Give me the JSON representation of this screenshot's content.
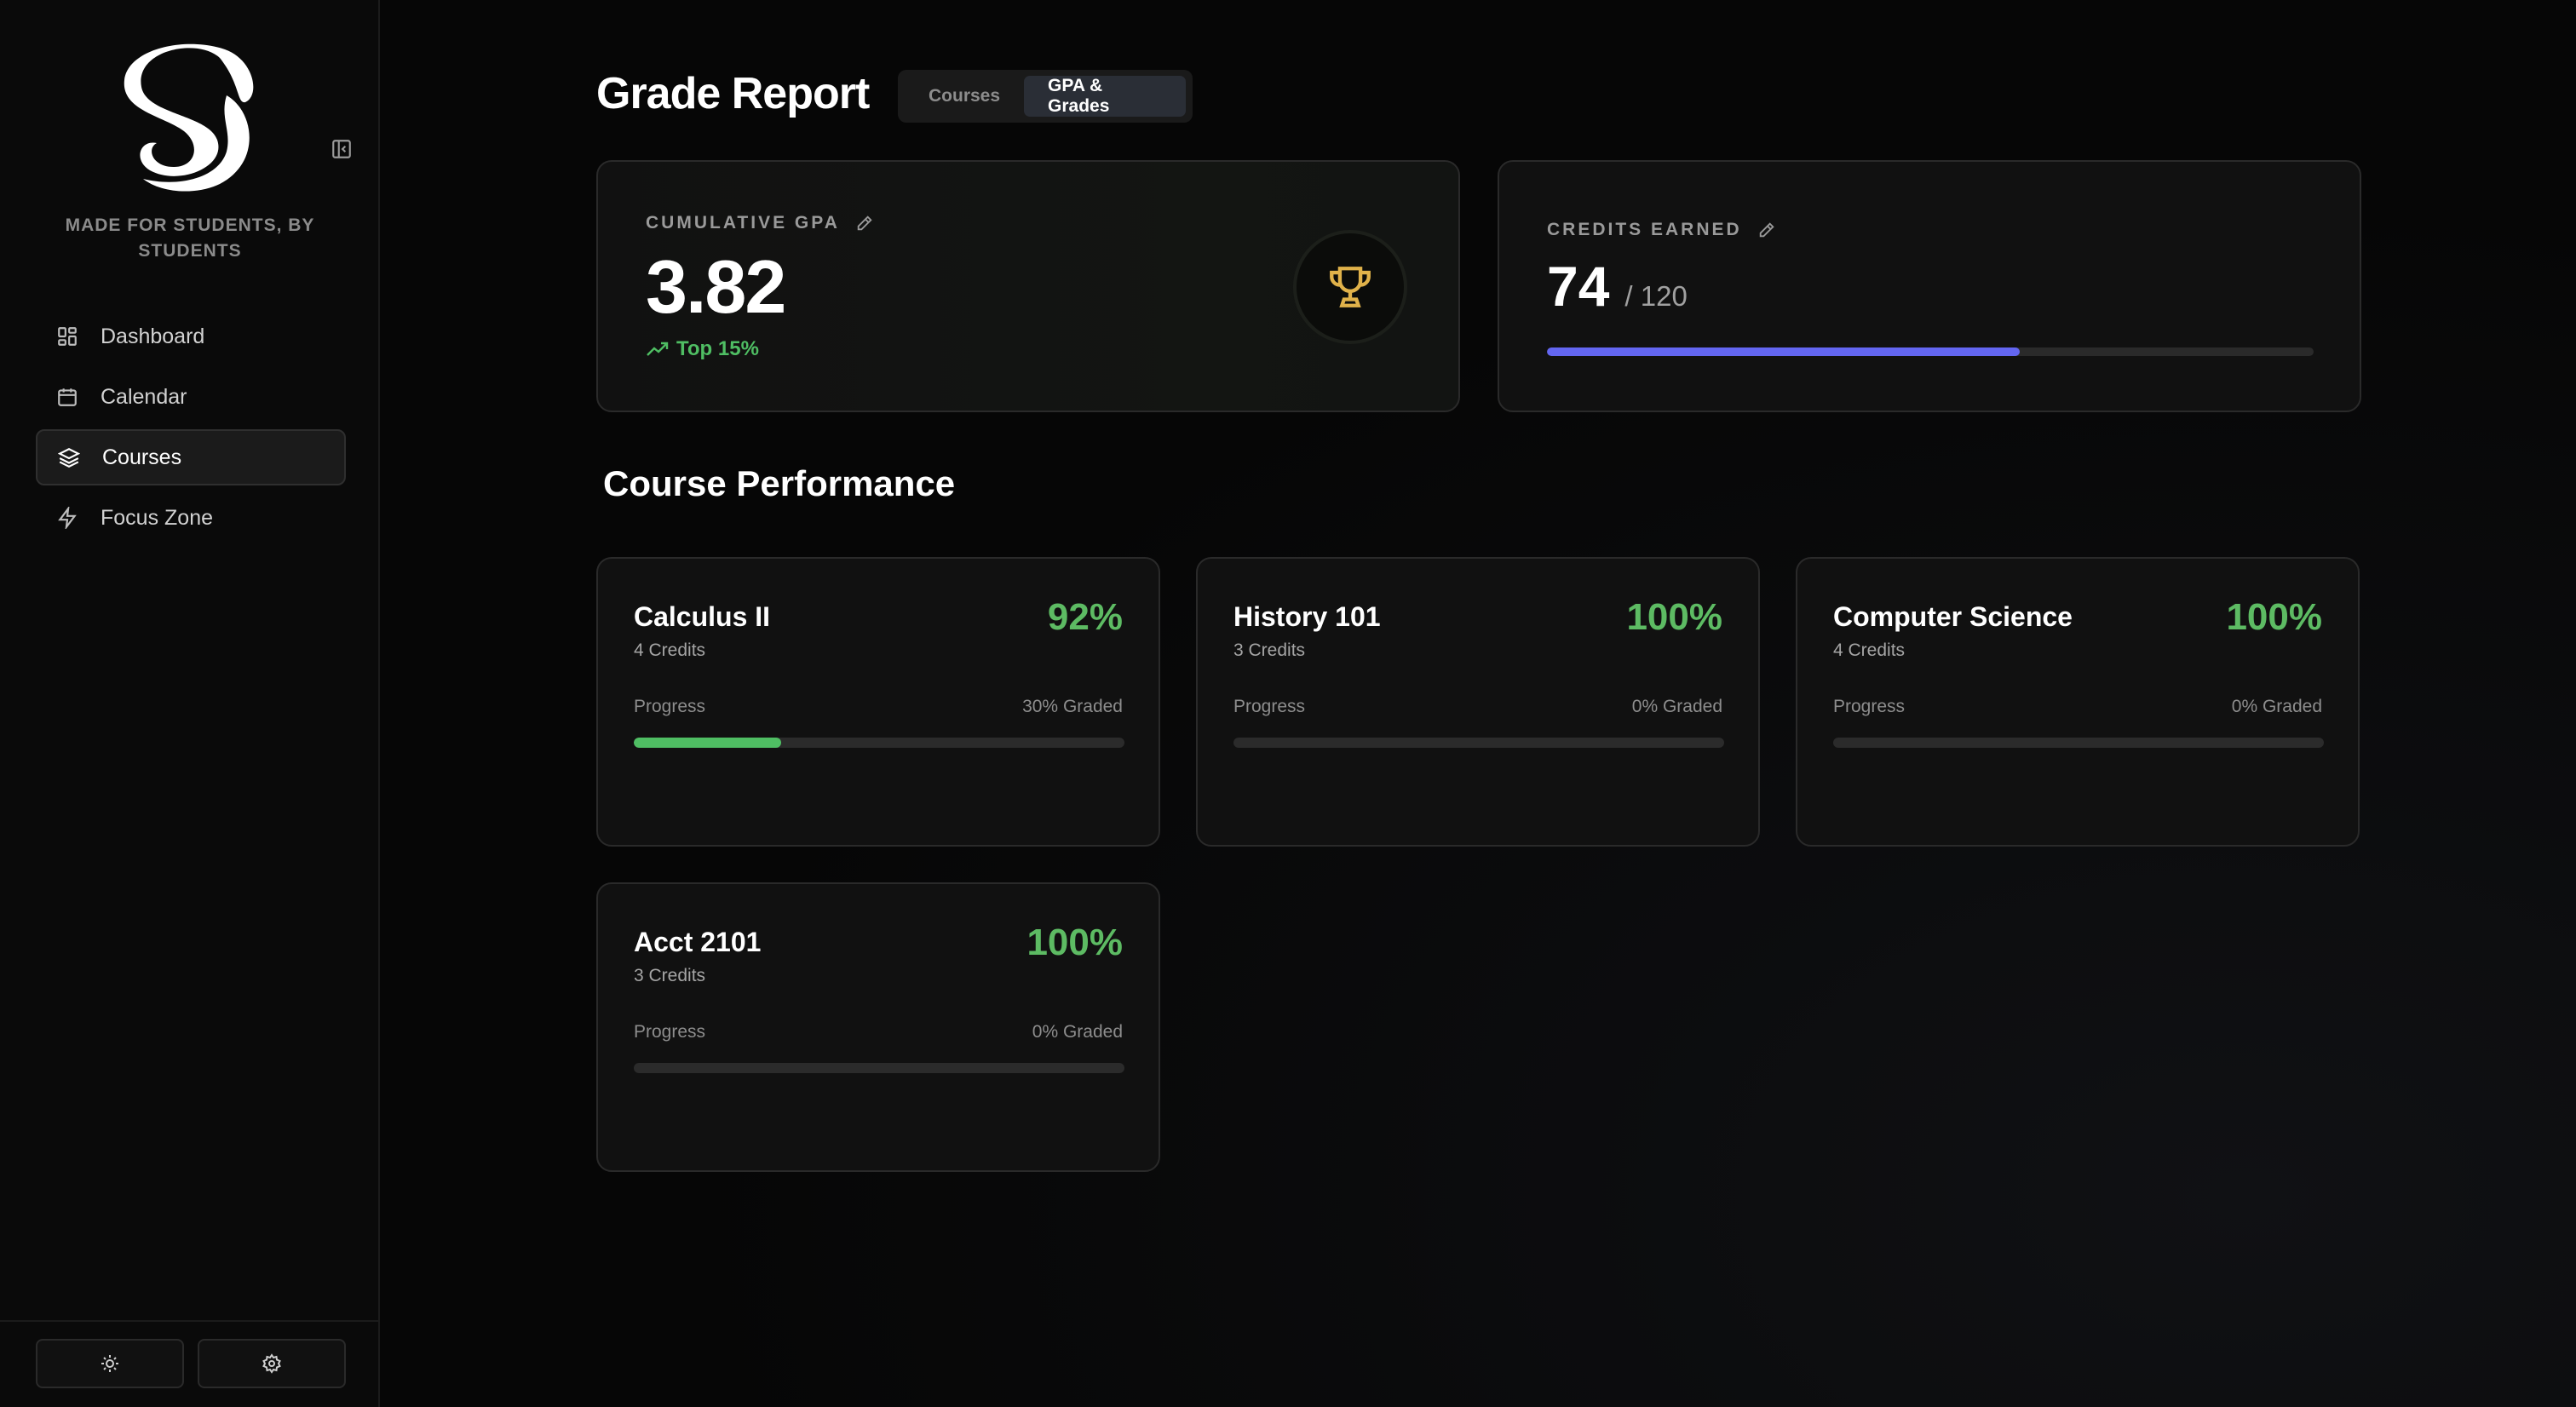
{
  "sidebar": {
    "tagline": "MADE FOR STUDENTS, BY STUDENTS",
    "items": [
      {
        "label": "Dashboard",
        "icon": "dashboard-icon",
        "active": false
      },
      {
        "label": "Calendar",
        "icon": "calendar-icon",
        "active": false
      },
      {
        "label": "Courses",
        "icon": "layers-icon",
        "active": true
      },
      {
        "label": "Focus Zone",
        "icon": "lightning-icon",
        "active": false
      }
    ],
    "footer": {
      "theme_icon": "sun-icon",
      "settings_icon": "gear-icon"
    }
  },
  "header": {
    "title": "Grade Report",
    "tabs": [
      {
        "label": "Courses",
        "active": false
      },
      {
        "label": "GPA & Grades",
        "active": true
      }
    ]
  },
  "gpa": {
    "label": "CUMULATIVE GPA",
    "value": "3.82",
    "rank": "Top 15%"
  },
  "credits": {
    "label": "CREDITS EARNED",
    "earned": "74",
    "total": "/ 120",
    "progress": 0.6167,
    "bar_color": "#6366f1"
  },
  "performance": {
    "title": "Course Performance",
    "courses": [
      {
        "name": "Calculus II",
        "credits": "4 Credits",
        "grade": "92%",
        "progress_label": "Progress",
        "graded": "30% Graded",
        "progress": 0.3
      },
      {
        "name": "History 101",
        "credits": "3 Credits",
        "grade": "100%",
        "progress_label": "Progress",
        "graded": "0% Graded",
        "progress": 0
      },
      {
        "name": "Computer Science",
        "credits": "4 Credits",
        "grade": "100%",
        "progress_label": "Progress",
        "graded": "0% Graded",
        "progress": 0
      },
      {
        "name": "Acct 2101",
        "credits": "3 Credits",
        "grade": "100%",
        "progress_label": "Progress",
        "graded": "0% Graded",
        "progress": 0
      }
    ]
  },
  "colors": {
    "accent_green": "#5dbb63",
    "accent_indigo": "#6366f1",
    "trophy": "#e0b24a"
  }
}
